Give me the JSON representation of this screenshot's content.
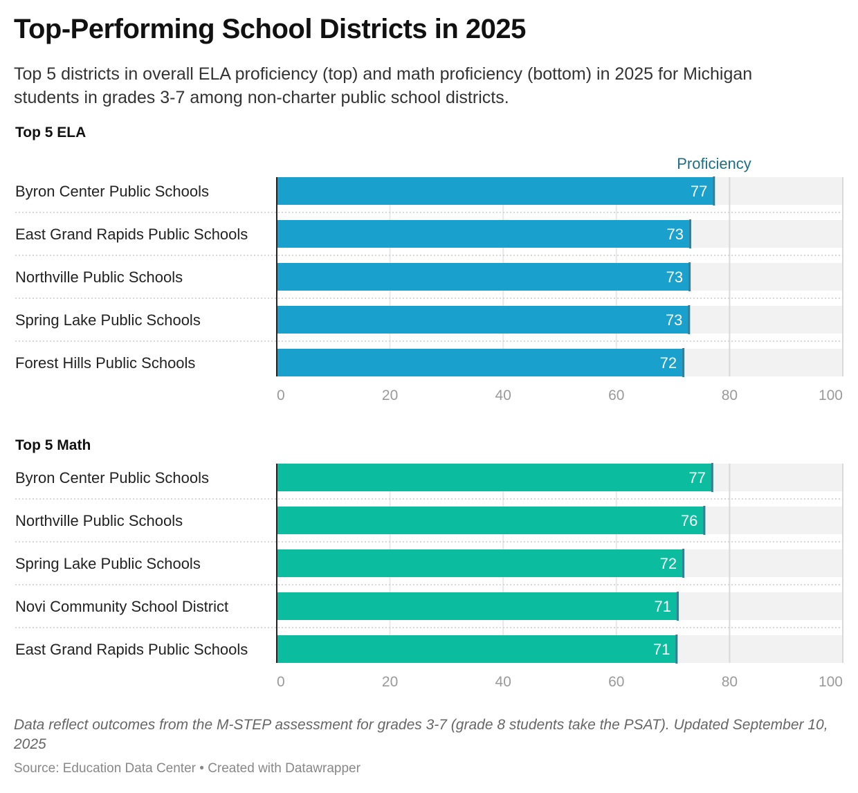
{
  "title": "Top-Performing School Districts in 2025",
  "subtitle": "Top 5 districts in overall ELA proficiency (top) and math proficiency (bottom) in 2025 for Michigan students in grades 3-7 among non-charter public school districts.",
  "notes": "Data reflect outcomes from the M-STEP assessment for grades 3-7 (grade 8 students take the PSAT). Updated September 10, 2025",
  "source": "Source: Education Data Center • Created with Datawrapper",
  "chart_data": [
    {
      "type": "bar",
      "title": "Top 5 ELA",
      "legend_label": "Proficiency",
      "color": "#1aa0cc",
      "xlim": [
        0,
        100
      ],
      "ticks": [
        0,
        20,
        40,
        60,
        80,
        100
      ],
      "categories": [
        "Byron Center Public Schools",
        "East Grand Rapids Public Schools",
        "Northville Public Schools",
        "Spring Lake Public Schools",
        "Forest Hills Public Schools"
      ],
      "values": [
        77.3,
        73.1,
        73.0,
        72.9,
        71.9
      ],
      "labels": [
        "77",
        "73",
        "73",
        "73",
        "72"
      ]
    },
    {
      "type": "bar",
      "title": "Top 5 Math",
      "color": "#0bbd9e",
      "xlim": [
        0,
        100
      ],
      "ticks": [
        0,
        20,
        40,
        60,
        80,
        100
      ],
      "categories": [
        "Byron Center Public Schools",
        "Northville Public Schools",
        "Spring Lake Public Schools",
        "Novi Community School District",
        "East Grand Rapids Public Schools"
      ],
      "values": [
        77.0,
        75.6,
        71.9,
        70.9,
        70.7
      ],
      "labels": [
        "77",
        "76",
        "72",
        "71",
        "71"
      ]
    }
  ]
}
